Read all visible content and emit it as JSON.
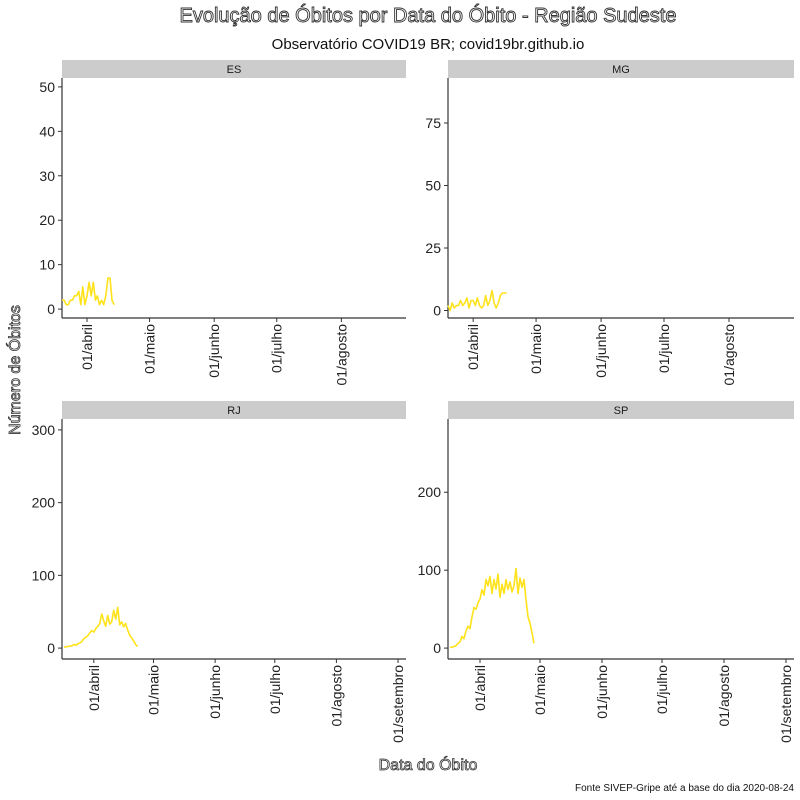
{
  "title": "Evolução de Óbitos por Data do Óbito - Região Sudeste",
  "subtitle": "Observatório COVID19 BR; covid19br.github.io",
  "caption": "Fonte  SIVEP-Gripe até a base do dia 2020-08-24",
  "colors": {
    "line": "#FFE21A",
    "strip": "#CCCCCC",
    "axis": "#333333"
  },
  "chart_data": [
    {
      "type": "line",
      "facet": "ES",
      "xlabel": "Data do Óbito",
      "ylabel": "Número de Óbitos",
      "x_tick_labels": [
        "01/abril",
        "01/maio",
        "01/junho",
        "01/julho",
        "01/agosto"
      ],
      "x_ticks": [
        "2020-04-01",
        "2020-05-01",
        "2020-06-01",
        "2020-07-01",
        "2020-08-01"
      ],
      "x_range": [
        "2020-03-20",
        "2020-09-01"
      ],
      "ylim": [
        -2,
        52
      ],
      "y_ticks": [
        0,
        10,
        20,
        30,
        40,
        50
      ],
      "series": [
        {
          "x_start": "2020-03-20",
          "values": [
            2,
            2,
            1,
            1,
            2,
            2,
            3,
            3,
            4,
            1,
            5,
            1,
            3,
            6,
            3,
            6,
            2,
            3,
            1,
            2,
            1,
            3,
            7,
            7,
            2,
            1
          ]
        }
      ]
    },
    {
      "type": "line",
      "facet": "MG",
      "xlabel": "Data do Óbito",
      "ylabel": "Número de Óbitos",
      "x_tick_labels": [
        "01/abril",
        "01/maio",
        "01/junho",
        "01/julho",
        "01/agosto"
      ],
      "x_ticks": [
        "2020-04-01",
        "2020-05-01",
        "2020-06-01",
        "2020-07-01",
        "2020-08-01"
      ],
      "x_range": [
        "2020-03-20",
        "2020-09-01"
      ],
      "ylim": [
        -3,
        93
      ],
      "y_ticks": [
        0,
        25,
        50,
        75
      ],
      "series": [
        {
          "x_start": "2020-03-20",
          "values": [
            2,
            0,
            3,
            1,
            2,
            2,
            4,
            2,
            3,
            5,
            1,
            4,
            4,
            2,
            5,
            2,
            1,
            2,
            6,
            2,
            4,
            8,
            3,
            1,
            3,
            6,
            7,
            7,
            7
          ]
        }
      ]
    },
    {
      "type": "line",
      "facet": "RJ",
      "xlabel": "Data do Óbito",
      "ylabel": "Número de Óbitos",
      "x_tick_labels": [
        "01/abril",
        "01/maio",
        "01/junho",
        "01/julho",
        "01/agosto",
        "01/setembro"
      ],
      "x_ticks": [
        "2020-04-01",
        "2020-05-01",
        "2020-06-01",
        "2020-07-01",
        "2020-08-01",
        "2020-09-01"
      ],
      "x_range": [
        "2020-03-16",
        "2020-09-05"
      ],
      "ylim": [
        -15,
        315
      ],
      "y_ticks": [
        0,
        100,
        200,
        300
      ],
      "series": [
        {
          "x_start": "2020-03-17",
          "values": [
            1,
            2,
            2,
            3,
            3,
            5,
            4,
            6,
            7,
            9,
            13,
            15,
            17,
            21,
            24,
            22,
            27,
            30,
            34,
            47,
            37,
            30,
            45,
            33,
            36,
            52,
            40,
            56,
            32,
            36,
            29,
            34,
            25,
            18,
            14,
            10,
            5,
            2
          ]
        }
      ]
    },
    {
      "type": "line",
      "facet": "SP",
      "xlabel": "Data do Óbito",
      "ylabel": "Número de Óbitos",
      "x_tick_labels": [
        "01/abril",
        "01/maio",
        "01/junho",
        "01/julho",
        "01/agosto",
        "01/setembro"
      ],
      "x_ticks": [
        "2020-04-01",
        "2020-05-01",
        "2020-06-01",
        "2020-07-01",
        "2020-08-01",
        "2020-09-01"
      ],
      "x_range": [
        "2020-03-16",
        "2020-09-05"
      ],
      "ylim": [
        -14,
        294
      ],
      "y_ticks": [
        0,
        100,
        200
      ],
      "series": [
        {
          "x_start": "2020-03-17",
          "values": [
            1,
            1,
            2,
            3,
            6,
            8,
            15,
            12,
            22,
            28,
            25,
            40,
            52,
            50,
            58,
            63,
            75,
            68,
            88,
            80,
            92,
            70,
            88,
            76,
            95,
            65,
            82,
            70,
            88,
            75,
            85,
            72,
            80,
            102,
            70,
            90,
            78,
            88,
            62,
            40,
            32,
            20,
            6
          ]
        }
      ]
    }
  ]
}
